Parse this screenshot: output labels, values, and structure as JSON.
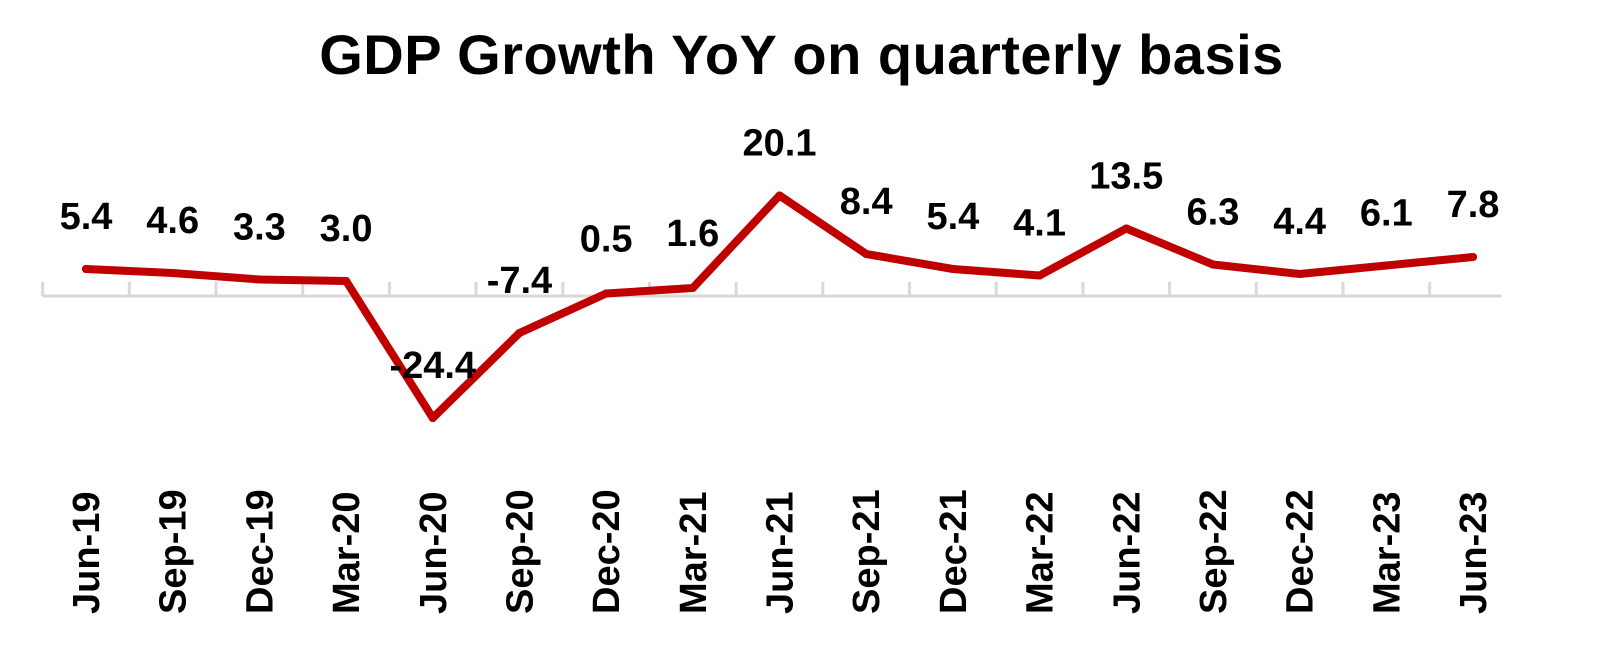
{
  "chart_data": {
    "type": "line",
    "title": "GDP Growth YoY on quarterly basis",
    "xlabel": "",
    "ylabel": "",
    "categories": [
      "Jun-19",
      "Sep-19",
      "Dec-19",
      "Mar-20",
      "Jun-20",
      "Sep-20",
      "Dec-20",
      "Mar-21",
      "Jun-21",
      "Sep-21",
      "Dec-21",
      "Mar-22",
      "Jun-22",
      "Sep-22",
      "Dec-22",
      "Mar-23",
      "Jun-23"
    ],
    "series": [
      {
        "values": [
          5.4,
          4.6,
          3.3,
          3.0,
          -24.4,
          -7.4,
          0.5,
          1.6,
          20.1,
          8.4,
          5.4,
          4.1,
          13.5,
          6.3,
          4.4,
          6.1,
          7.8
        ],
        "labels": [
          "5.4",
          "4.6",
          "3.3",
          "3.0",
          "-24.4",
          "-7.4",
          "0.5",
          "1.6",
          "20.1",
          "8.4",
          "5.4",
          "4.1",
          "13.5",
          "6.3",
          "4.4",
          "6.1",
          "7.8"
        ],
        "color": "#C00000"
      }
    ],
    "ylim": [
      -30,
      25
    ],
    "grid": false,
    "legend": "none",
    "axis_color": "#D9D9D9"
  }
}
